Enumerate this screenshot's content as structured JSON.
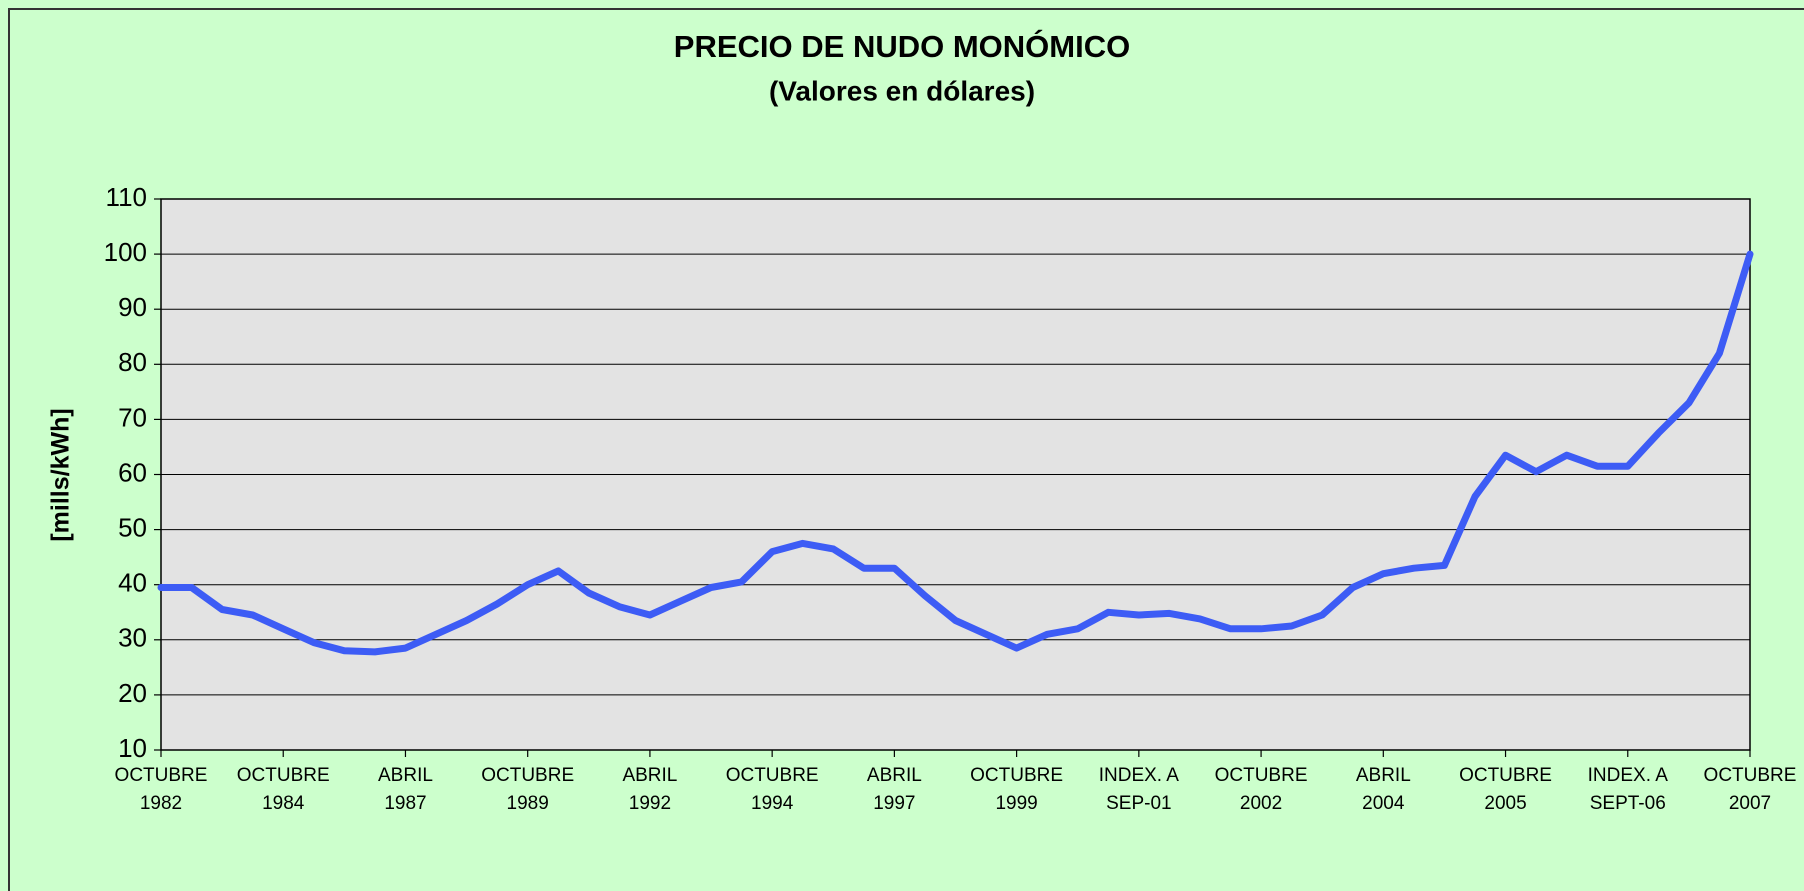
{
  "chart_data": {
    "type": "line",
    "title": "PRECIO DE NUDO MONÓMICO",
    "subtitle": "(Valores en dólares)",
    "y_label": "[mills/kWh]",
    "categories": [
      [
        "OCTUBRE",
        "1982"
      ],
      null,
      null,
      null,
      [
        "OCTUBRE",
        "1984"
      ],
      null,
      null,
      null,
      [
        "ABRIL",
        "1987"
      ],
      null,
      null,
      null,
      [
        "OCTUBRE",
        "1989"
      ],
      null,
      null,
      null,
      [
        "ABRIL",
        "1992"
      ],
      null,
      null,
      null,
      [
        "OCTUBRE",
        "1994"
      ],
      null,
      null,
      null,
      [
        "ABRIL",
        "1997"
      ],
      null,
      null,
      null,
      [
        "OCTUBRE",
        "1999"
      ],
      null,
      null,
      null,
      [
        "INDEX. A",
        "SEP-01"
      ],
      null,
      null,
      null,
      [
        "OCTUBRE",
        "2002"
      ],
      null,
      null,
      null,
      [
        "ABRIL",
        "2004"
      ],
      null,
      null,
      null,
      [
        "OCTUBRE",
        "2005"
      ],
      null,
      null,
      null,
      [
        "INDEX. A",
        "SEPT-06"
      ],
      null,
      null,
      null,
      [
        "OCTUBRE",
        "2007"
      ]
    ],
    "values": [
      39.5,
      39.5,
      35.5,
      34.5,
      32,
      29.5,
      28,
      27.8,
      28.5,
      31,
      33.5,
      36.5,
      40,
      42.5,
      38.5,
      36,
      34.5,
      37,
      39.5,
      40.5,
      46,
      47.5,
      46.5,
      43,
      43,
      38,
      33.5,
      31,
      28.5,
      31,
      32,
      35,
      34.5,
      34.8,
      33.8,
      32,
      32,
      32.5,
      34.5,
      39.5,
      42,
      43,
      43.5,
      56,
      63.5,
      60.5,
      63.5,
      61.5,
      61.5,
      67.5,
      73,
      82,
      100
    ],
    "color": "#3d5cf5",
    "ylim": [
      10,
      110
    ],
    "yticks": [
      10,
      20,
      30,
      40,
      50,
      60,
      70,
      80,
      90,
      100,
      110
    ],
    "grid": true
  }
}
